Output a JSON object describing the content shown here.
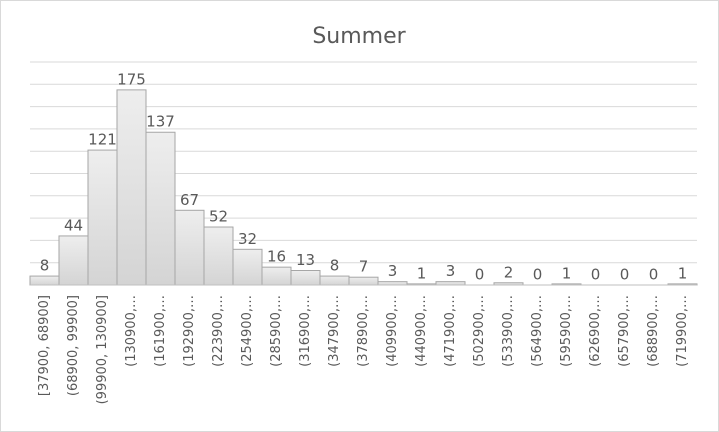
{
  "chart_data": {
    "type": "bar",
    "title": "Summer",
    "categories": [
      "[37900, 68900]",
      "(68900, 99900]",
      "(99900, 130900]",
      "(130900,…",
      "(161900,…",
      "(192900,…",
      "(223900,…",
      "(254900,…",
      "(285900,…",
      "(316900,…",
      "(347900,…",
      "(378900,…",
      "(409900,…",
      "(440900,…",
      "(471900,…",
      "(502900,…",
      "(533900,…",
      "(564900,…",
      "(595900,…",
      "(626900,…",
      "(657900,…",
      "(688900,…",
      "(719900,…"
    ],
    "values": [
      8,
      44,
      121,
      175,
      137,
      67,
      52,
      32,
      16,
      13,
      8,
      7,
      3,
      1,
      3,
      0,
      2,
      0,
      1,
      0,
      0,
      0,
      1
    ],
    "color": "#d4d4d4",
    "ylim": [
      0,
      200
    ],
    "yticks": [
      0,
      20,
      40,
      60,
      80,
      100,
      120,
      140,
      160,
      180,
      200
    ],
    "grid": true
  }
}
